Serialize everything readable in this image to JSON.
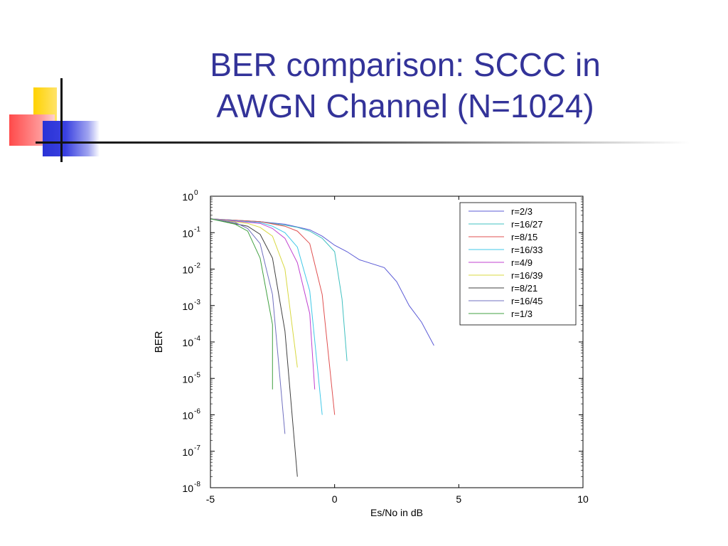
{
  "slide": {
    "title_line1": "BER comparison: SCCC in",
    "title_line2": "AWGN Channel (N=1024)"
  },
  "chart_data": {
    "type": "line",
    "xlabel": "Es/No in dB",
    "ylabel": "BER",
    "xlim": [
      -5,
      10
    ],
    "ylim_log10": [
      -8,
      0
    ],
    "yscale": "log",
    "grid": false,
    "legend_position": "top-right",
    "x_ticks": [
      -5,
      0,
      5,
      10
    ],
    "y_tick_labels": [
      {
        "base": "10",
        "exp": "0"
      },
      {
        "base": "10",
        "exp": "-1"
      },
      {
        "base": "10",
        "exp": "-2"
      },
      {
        "base": "10",
        "exp": "-3"
      },
      {
        "base": "10",
        "exp": "-4"
      },
      {
        "base": "10",
        "exp": "-5"
      },
      {
        "base": "10",
        "exp": "-6"
      },
      {
        "base": "10",
        "exp": "-7"
      },
      {
        "base": "10",
        "exp": "-8"
      }
    ],
    "series": [
      {
        "name": "r=2/3",
        "color": "#5b5bd6",
        "points": [
          [
            -5,
            0.24
          ],
          [
            -4,
            0.22
          ],
          [
            -3,
            0.2
          ],
          [
            -2,
            0.17
          ],
          [
            -1,
            0.12
          ],
          [
            -0.5,
            0.08
          ],
          [
            0,
            0.045
          ],
          [
            0.5,
            0.03
          ],
          [
            1,
            0.018
          ],
          [
            2,
            0.011
          ],
          [
            2.5,
            0.0045
          ],
          [
            3,
            0.001
          ],
          [
            3.5,
            0.00035
          ],
          [
            4,
            8e-05
          ]
        ]
      },
      {
        "name": "r=16/27",
        "color": "#40c0c0",
        "points": [
          [
            -5,
            0.24
          ],
          [
            -3,
            0.2
          ],
          [
            -2,
            0.16
          ],
          [
            -1.5,
            0.14
          ],
          [
            -1,
            0.11
          ],
          [
            -0.5,
            0.07
          ],
          [
            0,
            0.03
          ],
          [
            0.3,
            0.0015
          ],
          [
            0.5,
            3e-05
          ]
        ]
      },
      {
        "name": "r=8/15",
        "color": "#e05050",
        "points": [
          [
            -5,
            0.24
          ],
          [
            -3,
            0.2
          ],
          [
            -2,
            0.15
          ],
          [
            -1.5,
            0.11
          ],
          [
            -1,
            0.05
          ],
          [
            -0.5,
            0.002
          ],
          [
            0,
            1e-06
          ]
        ]
      },
      {
        "name": "r=16/33",
        "color": "#40c8e8",
        "points": [
          [
            -5,
            0.24
          ],
          [
            -3,
            0.19
          ],
          [
            -2.5,
            0.15
          ],
          [
            -2,
            0.1
          ],
          [
            -1.5,
            0.04
          ],
          [
            -1,
            0.0025
          ],
          [
            -0.5,
            1e-06
          ]
        ]
      },
      {
        "name": "r=4/9",
        "color": "#c040d0",
        "points": [
          [
            -5,
            0.24
          ],
          [
            -3,
            0.18
          ],
          [
            -2.5,
            0.13
          ],
          [
            -2,
            0.07
          ],
          [
            -1.5,
            0.015
          ],
          [
            -1,
            0.0006
          ],
          [
            -0.8,
            5e-06
          ]
        ]
      },
      {
        "name": "r=16/39",
        "color": "#d8d840",
        "points": [
          [
            -5,
            0.24
          ],
          [
            -3.5,
            0.18
          ],
          [
            -3,
            0.14
          ],
          [
            -2.5,
            0.08
          ],
          [
            -2,
            0.01
          ],
          [
            -1.5,
            2e-05
          ]
        ]
      },
      {
        "name": "r=8/21",
        "color": "#404040",
        "points": [
          [
            -5,
            0.24
          ],
          [
            -3.5,
            0.15
          ],
          [
            -3,
            0.09
          ],
          [
            -2.5,
            0.02
          ],
          [
            -2,
            0.0002
          ],
          [
            -1.5,
            2e-08
          ]
        ]
      },
      {
        "name": "r=16/45",
        "color": "#7070c0",
        "points": [
          [
            -5,
            0.24
          ],
          [
            -4,
            0.19
          ],
          [
            -3.5,
            0.13
          ],
          [
            -3,
            0.05
          ],
          [
            -2.5,
            0.002
          ],
          [
            -2,
            3e-07
          ]
        ]
      },
      {
        "name": "r=1/3",
        "color": "#40a040",
        "points": [
          [
            -5,
            0.24
          ],
          [
            -4,
            0.17
          ],
          [
            -3.5,
            0.11
          ],
          [
            -3,
            0.02
          ],
          [
            -2.5,
            0.0003
          ],
          [
            -2.5,
            5e-06
          ]
        ]
      }
    ]
  }
}
